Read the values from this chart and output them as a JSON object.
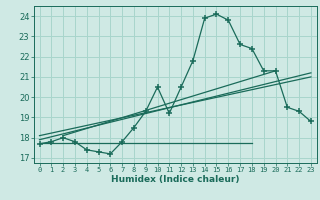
{
  "title": "",
  "xlabel": "Humidex (Indice chaleur)",
  "ylabel": "",
  "bg_color": "#cfe9e4",
  "grid_color": "#a8d5cc",
  "line_color": "#1a6b5a",
  "xlim": [
    -0.5,
    23.5
  ],
  "ylim": [
    16.75,
    24.5
  ],
  "yticks": [
    17,
    18,
    19,
    20,
    21,
    22,
    23,
    24
  ],
  "xticks": [
    0,
    1,
    2,
    3,
    4,
    5,
    6,
    7,
    8,
    9,
    10,
    11,
    12,
    13,
    14,
    15,
    16,
    17,
    18,
    19,
    20,
    21,
    22,
    23
  ],
  "main_line": [
    [
      0,
      17.7
    ],
    [
      1,
      17.8
    ],
    [
      2,
      18.0
    ],
    [
      3,
      17.8
    ],
    [
      4,
      17.4
    ],
    [
      5,
      17.3
    ],
    [
      6,
      17.2
    ],
    [
      7,
      17.8
    ],
    [
      8,
      18.5
    ],
    [
      9,
      19.3
    ],
    [
      10,
      20.5
    ],
    [
      11,
      19.2
    ],
    [
      12,
      20.5
    ],
    [
      13,
      21.8
    ],
    [
      14,
      23.9
    ],
    [
      15,
      24.1
    ],
    [
      16,
      23.8
    ],
    [
      17,
      22.6
    ],
    [
      18,
      22.4
    ],
    [
      19,
      21.3
    ],
    [
      20,
      21.3
    ],
    [
      21,
      19.5
    ],
    [
      22,
      19.3
    ],
    [
      23,
      18.8
    ]
  ],
  "flat_line_x": [
    0,
    18
  ],
  "flat_line_y": [
    17.75,
    17.75
  ],
  "regression_lines": [
    {
      "x": [
        0,
        23
      ],
      "y": [
        17.9,
        21.2
      ]
    },
    {
      "x": [
        0,
        23
      ],
      "y": [
        18.1,
        21.0
      ]
    },
    {
      "x": [
        2,
        20
      ],
      "y": [
        18.1,
        21.3
      ]
    }
  ]
}
